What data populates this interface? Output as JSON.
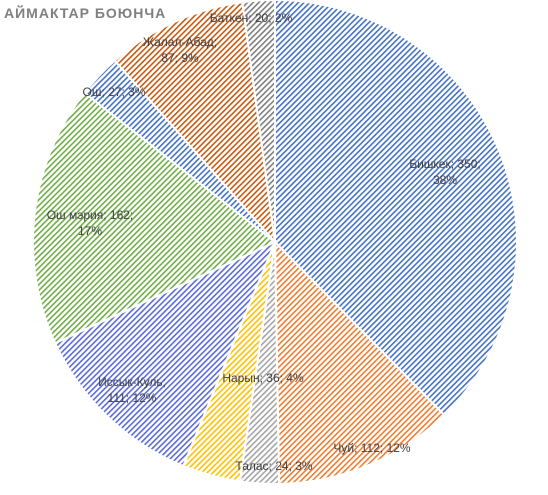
{
  "chart_data": {
    "type": "pie",
    "title": "АЙМАКТАР БОЮНЧА",
    "slices": [
      {
        "name": "Бишкек",
        "value": 350,
        "percent": "38%",
        "label_line1": "Бишкек; 350;",
        "label_line2": "38%",
        "color": "#4472c4"
      },
      {
        "name": "Чуй",
        "value": 112,
        "percent": "12%",
        "label_line1": "Чуй; 112; 12%",
        "label_line2": "",
        "color": "#ed7d31"
      },
      {
        "name": "Талас",
        "value": 24,
        "percent": "3%",
        "label_line1": "Талас; 24; 3%",
        "label_line2": "",
        "color": "#a5a5a5"
      },
      {
        "name": "Нарын",
        "value": 36,
        "percent": "4%",
        "label_line1": "Нарын; 36; 4%",
        "label_line2": "",
        "color": "#ffc000"
      },
      {
        "name": "Иссык-Куль",
        "value": 111,
        "percent": "12%",
        "label_line1": "Иссык-Куль;",
        "label_line2": "111; 12%",
        "color": "#5b6bd6"
      },
      {
        "name": "Ош мэрия",
        "value": 162,
        "percent": "17%",
        "label_line1": "Ош мэрия; 162;",
        "label_line2": "17%",
        "color": "#70ad47"
      },
      {
        "name": "Ош",
        "value": 27,
        "percent": "3%",
        "label_line1": "Ош; 27; 3%",
        "label_line2": "",
        "color": "#4472c4"
      },
      {
        "name": "Жалал-Абад",
        "value": 87,
        "percent": "9%",
        "label_line1": "Жалал-Абад;",
        "label_line2": "87; 9%",
        "color": "#c55a11"
      },
      {
        "name": "Баткен",
        "value": 20,
        "percent": "2%",
        "label_line1": "Баткен; 20; 2%",
        "label_line2": "",
        "color": "#7f7f7f"
      }
    ],
    "legend": "none"
  }
}
